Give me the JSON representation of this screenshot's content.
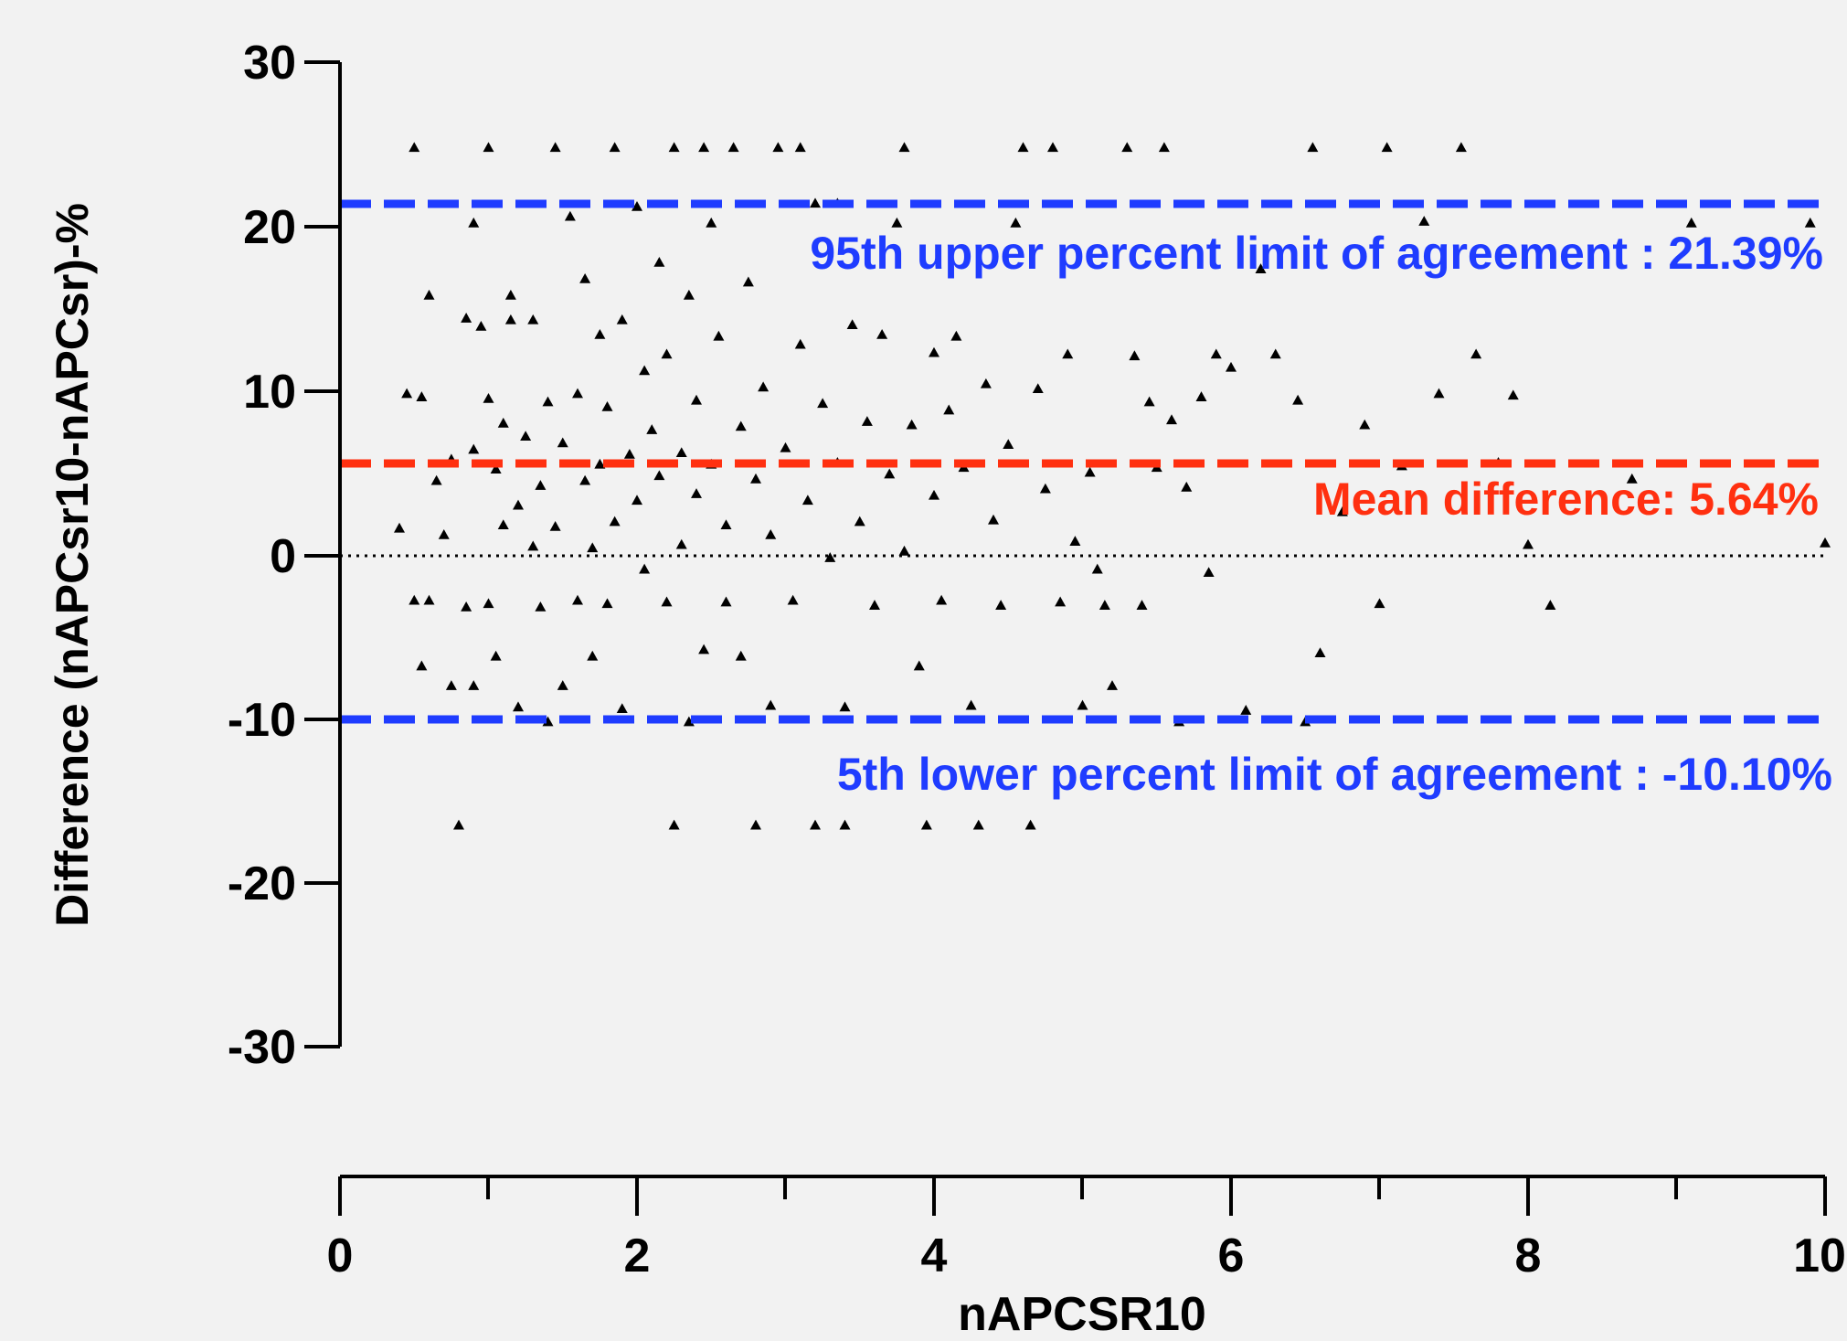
{
  "chart_data": {
    "type": "scatter",
    "title": "",
    "xlabel": "nAPCSR10",
    "ylabel": "Difference (nAPCsr10-nAPCsr)-%",
    "xlim": [
      0,
      10
    ],
    "ylim": [
      -30,
      30
    ],
    "x_ticks": [
      "0",
      "2",
      "4",
      "6",
      "8",
      "10"
    ],
    "y_ticks": [
      "30",
      "20",
      "10",
      "0",
      "-10",
      "-20",
      "-30"
    ],
    "grid": false,
    "zero_line": 0,
    "marker": "triangle",
    "reference_lines": [
      {
        "label": "95th upper percent limit of agreement : 21.39%",
        "y": 21.39,
        "color": "#1f3cff"
      },
      {
        "label": "Mean difference: 5.64%",
        "y": 5.64,
        "color": "#ff3010"
      },
      {
        "label": "5th lower percent limit of agreement : -10.10%",
        "y": -10.1,
        "color": "#1f3cff"
      }
    ],
    "series": [
      {
        "points": [
          [
            0.4,
            1.6
          ],
          [
            0.45,
            9.8
          ],
          [
            0.5,
            24.8
          ],
          [
            0.5,
            -2.8
          ],
          [
            0.55,
            9.6
          ],
          [
            0.55,
            -6.8
          ],
          [
            0.6,
            15.8
          ],
          [
            0.6,
            -2.8
          ],
          [
            0.65,
            4.5
          ],
          [
            0.7,
            1.2
          ],
          [
            0.75,
            5.8
          ],
          [
            0.75,
            -8.0
          ],
          [
            0.8,
            -16.5
          ],
          [
            0.85,
            14.4
          ],
          [
            0.85,
            -3.2
          ],
          [
            0.9,
            20.2
          ],
          [
            0.9,
            6.4
          ],
          [
            0.9,
            -8.0
          ],
          [
            0.95,
            13.9
          ],
          [
            1.0,
            9.5
          ],
          [
            1.0,
            -3.0
          ],
          [
            1.0,
            24.8
          ],
          [
            1.05,
            5.2
          ],
          [
            1.05,
            -6.2
          ],
          [
            1.1,
            8.0
          ],
          [
            1.1,
            1.8
          ],
          [
            1.15,
            15.8
          ],
          [
            1.15,
            14.3
          ],
          [
            1.2,
            3.0
          ],
          [
            1.2,
            -9.3
          ],
          [
            1.25,
            7.2
          ],
          [
            1.3,
            0.5
          ],
          [
            1.3,
            14.3
          ],
          [
            1.35,
            4.2
          ],
          [
            1.35,
            -3.2
          ],
          [
            1.4,
            9.3
          ],
          [
            1.4,
            -10.2
          ],
          [
            1.45,
            24.8
          ],
          [
            1.45,
            1.7
          ],
          [
            1.5,
            6.8
          ],
          [
            1.5,
            -8.0
          ],
          [
            1.55,
            20.6
          ],
          [
            1.6,
            9.8
          ],
          [
            1.6,
            -2.8
          ],
          [
            1.65,
            16.8
          ],
          [
            1.65,
            4.5
          ],
          [
            1.7,
            0.4
          ],
          [
            1.7,
            -6.2
          ],
          [
            1.75,
            13.4
          ],
          [
            1.75,
            5.5
          ],
          [
            1.8,
            9.0
          ],
          [
            1.8,
            -3.0
          ],
          [
            1.85,
            24.8
          ],
          [
            1.85,
            2.0
          ],
          [
            1.9,
            14.3
          ],
          [
            1.9,
            -9.4
          ],
          [
            1.95,
            6.1
          ],
          [
            2.0,
            21.2
          ],
          [
            2.0,
            3.3
          ],
          [
            2.05,
            11.2
          ],
          [
            2.05,
            -0.9
          ],
          [
            2.1,
            7.6
          ],
          [
            2.15,
            17.8
          ],
          [
            2.15,
            4.8
          ],
          [
            2.2,
            -2.9
          ],
          [
            2.2,
            12.2
          ],
          [
            2.25,
            24.8
          ],
          [
            2.25,
            -16.5
          ],
          [
            2.3,
            6.2
          ],
          [
            2.3,
            0.6
          ],
          [
            2.35,
            15.8
          ],
          [
            2.35,
            -10.2
          ],
          [
            2.4,
            9.4
          ],
          [
            2.4,
            3.7
          ],
          [
            2.45,
            24.8
          ],
          [
            2.45,
            -5.8
          ],
          [
            2.5,
            20.2
          ],
          [
            2.5,
            5.5
          ],
          [
            2.55,
            13.3
          ],
          [
            2.6,
            1.8
          ],
          [
            2.6,
            -2.9
          ],
          [
            2.65,
            24.8
          ],
          [
            2.7,
            7.8
          ],
          [
            2.7,
            -6.2
          ],
          [
            2.75,
            16.6
          ],
          [
            2.8,
            4.6
          ],
          [
            2.8,
            -16.5
          ],
          [
            2.85,
            10.2
          ],
          [
            2.9,
            1.2
          ],
          [
            2.9,
            -9.2
          ],
          [
            2.95,
            24.8
          ],
          [
            3.0,
            6.5
          ],
          [
            3.05,
            -2.8
          ],
          [
            3.1,
            24.8
          ],
          [
            3.1,
            12.8
          ],
          [
            3.15,
            3.3
          ],
          [
            3.2,
            21.4
          ],
          [
            3.2,
            -16.5
          ],
          [
            3.25,
            9.2
          ],
          [
            3.3,
            -0.2
          ],
          [
            3.35,
            21.4
          ],
          [
            3.35,
            5.6
          ],
          [
            3.4,
            -9.3
          ],
          [
            3.4,
            -16.5
          ],
          [
            3.45,
            14.0
          ],
          [
            3.5,
            2.0
          ],
          [
            3.55,
            8.1
          ],
          [
            3.6,
            -3.1
          ],
          [
            3.65,
            13.4
          ],
          [
            3.7,
            4.9
          ],
          [
            3.75,
            20.2
          ],
          [
            3.8,
            24.8
          ],
          [
            3.8,
            0.2
          ],
          [
            3.85,
            7.9
          ],
          [
            3.9,
            -6.8
          ],
          [
            3.95,
            -16.5
          ],
          [
            4.0,
            12.3
          ],
          [
            4.0,
            3.6
          ],
          [
            4.05,
            -2.8
          ],
          [
            4.1,
            8.8
          ],
          [
            4.15,
            13.3
          ],
          [
            4.2,
            5.3
          ],
          [
            4.25,
            -9.2
          ],
          [
            4.3,
            -16.5
          ],
          [
            4.35,
            10.4
          ],
          [
            4.4,
            2.1
          ],
          [
            4.45,
            -3.1
          ],
          [
            4.5,
            6.7
          ],
          [
            4.55,
            20.2
          ],
          [
            4.6,
            24.8
          ],
          [
            4.65,
            -16.5
          ],
          [
            4.7,
            10.1
          ],
          [
            4.75,
            4.0
          ],
          [
            4.8,
            24.8
          ],
          [
            4.85,
            -2.9
          ],
          [
            4.9,
            12.2
          ],
          [
            4.95,
            0.8
          ],
          [
            5.0,
            -9.2
          ],
          [
            5.05,
            5.0
          ],
          [
            5.1,
            -0.9
          ],
          [
            5.15,
            -3.1
          ],
          [
            5.2,
            -8.0
          ],
          [
            5.3,
            24.8
          ],
          [
            5.35,
            12.1
          ],
          [
            5.4,
            -3.1
          ],
          [
            5.45,
            9.3
          ],
          [
            5.5,
            5.3
          ],
          [
            5.55,
            24.8
          ],
          [
            5.6,
            8.2
          ],
          [
            5.65,
            -10.2
          ],
          [
            5.7,
            4.1
          ],
          [
            5.8,
            9.6
          ],
          [
            5.85,
            -1.1
          ],
          [
            5.9,
            12.2
          ],
          [
            6.0,
            11.4
          ],
          [
            6.1,
            -9.5
          ],
          [
            6.2,
            17.4
          ],
          [
            6.3,
            12.2
          ],
          [
            6.45,
            9.4
          ],
          [
            6.5,
            -10.2
          ],
          [
            6.55,
            24.8
          ],
          [
            6.6,
            -6.0
          ],
          [
            6.75,
            2.6
          ],
          [
            6.9,
            7.9
          ],
          [
            7.0,
            -3.0
          ],
          [
            7.05,
            24.8
          ],
          [
            7.15,
            5.4
          ],
          [
            7.3,
            20.3
          ],
          [
            7.4,
            9.8
          ],
          [
            7.55,
            24.8
          ],
          [
            7.65,
            12.2
          ],
          [
            7.8,
            5.6
          ],
          [
            7.9,
            9.7
          ],
          [
            8.0,
            0.6
          ],
          [
            8.15,
            -3.1
          ],
          [
            8.7,
            4.6
          ],
          [
            9.1,
            20.2
          ],
          [
            9.9,
            20.2
          ],
          [
            10.0,
            0.7
          ]
        ]
      }
    ]
  }
}
